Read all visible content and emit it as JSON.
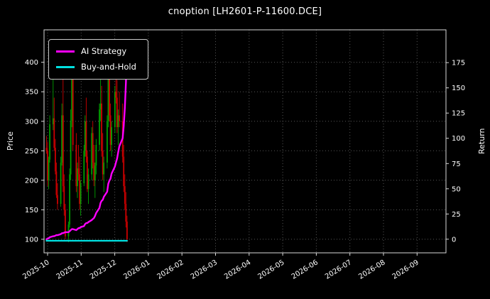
{
  "title": "cnoption [LH2601-P-11600.DCE]",
  "legend": {
    "items": [
      {
        "label": "AI Strategy",
        "color": "#ff00ff"
      },
      {
        "label": "Buy-and-Hold",
        "color": "#00e0e0"
      }
    ]
  },
  "chart_data": {
    "type": "candlestick",
    "title": "cnoption [LH2601-P-11600.DCE]",
    "ylabel_left": "Price",
    "ylabel_right": "Return",
    "grid": "dotted",
    "legend_position": "upper left",
    "x_start": "2025-10-01",
    "x_ticks": [
      "2025-10",
      "2025-11",
      "2025-12",
      "2026-01",
      "2026-02",
      "2026-03",
      "2026-04",
      "2026-05",
      "2026-06",
      "2026-07",
      "2026-08",
      "2026-09"
    ],
    "left_axis": {
      "min": 77,
      "max": 455,
      "ticks": [
        100,
        150,
        200,
        250,
        300,
        350,
        400
      ]
    },
    "right_axis": {
      "min": -13.5,
      "max": 207.5,
      "ticks": [
        0,
        25,
        50,
        75,
        100,
        125,
        150,
        175
      ]
    },
    "colors": {
      "up": "#00a000",
      "down": "#cc0000",
      "grid": "#565656",
      "frame": "#d9d9d9",
      "background": "#000000",
      "text": "#ffffff"
    },
    "candles": {
      "dates": [
        "2025-09-30",
        "2025-10-01",
        "2025-10-02",
        "2025-10-03",
        "2025-10-06",
        "2025-10-07",
        "2025-10-08",
        "2025-10-09",
        "2025-10-10",
        "2025-10-13",
        "2025-10-14",
        "2025-10-15",
        "2025-10-16",
        "2025-10-17",
        "2025-10-20",
        "2025-10-21",
        "2025-10-22",
        "2025-10-23",
        "2025-10-24",
        "2025-10-27",
        "2025-10-28",
        "2025-10-29",
        "2025-10-30",
        "2025-10-31",
        "2025-11-03",
        "2025-11-04",
        "2025-11-05",
        "2025-11-06",
        "2025-11-07",
        "2025-11-10",
        "2025-11-11",
        "2025-11-12",
        "2025-11-13",
        "2025-11-14",
        "2025-11-17",
        "2025-11-18",
        "2025-11-19",
        "2025-11-20",
        "2025-11-21",
        "2025-11-24",
        "2025-11-25",
        "2025-11-26",
        "2025-11-27",
        "2025-11-28",
        "2025-12-01",
        "2025-12-02",
        "2025-12-03",
        "2025-12-04",
        "2025-12-05",
        "2025-12-08",
        "2025-12-09",
        "2025-12-10",
        "2025-12-11",
        "2025-12-12"
      ],
      "open": [
        255,
        250,
        200,
        235,
        295,
        305,
        255,
        215,
        175,
        160,
        230,
        310,
        190,
        150,
        105,
        125,
        210,
        300,
        380,
        260,
        190,
        220,
        210,
        160,
        195,
        250,
        300,
        240,
        185,
        210,
        280,
        230,
        200,
        225,
        260,
        320,
        330,
        250,
        210,
        230,
        300,
        400,
        310,
        260,
        290,
        350,
        340,
        290,
        310,
        300,
        240,
        190,
        160,
        130
      ],
      "high": [
        275,
        265,
        240,
        310,
        390,
        340,
        270,
        230,
        195,
        240,
        330,
        390,
        210,
        160,
        130,
        220,
        320,
        420,
        400,
        280,
        230,
        260,
        240,
        200,
        260,
        310,
        340,
        250,
        220,
        290,
        300,
        260,
        230,
        270,
        330,
        420,
        360,
        280,
        240,
        310,
        420,
        410,
        330,
        300,
        360,
        390,
        370,
        320,
        350,
        330,
        260,
        210,
        180,
        140
      ],
      "low": [
        245,
        190,
        185,
        230,
        285,
        250,
        210,
        170,
        150,
        155,
        225,
        180,
        140,
        100,
        95,
        120,
        200,
        290,
        250,
        180,
        170,
        200,
        150,
        140,
        190,
        240,
        230,
        180,
        160,
        200,
        220,
        190,
        170,
        210,
        250,
        300,
        240,
        200,
        180,
        220,
        290,
        300,
        250,
        240,
        280,
        330,
        280,
        260,
        290,
        230,
        180,
        150,
        120,
        95
      ],
      "close": [
        250,
        200,
        235,
        295,
        305,
        255,
        215,
        175,
        160,
        230,
        310,
        190,
        150,
        105,
        125,
        210,
        300,
        380,
        260,
        190,
        220,
        210,
        160,
        195,
        250,
        300,
        240,
        185,
        210,
        280,
        230,
        200,
        225,
        260,
        320,
        330,
        250,
        210,
        230,
        300,
        400,
        310,
        260,
        290,
        350,
        340,
        290,
        310,
        300,
        240,
        190,
        160,
        130,
        100
      ]
    },
    "series": [
      {
        "name": "AI Strategy",
        "axis": "right",
        "color": "#ff00ff",
        "width": 2.4,
        "values": [
          0,
          0.5,
          1,
          2,
          3,
          3,
          3.5,
          4,
          4,
          5,
          6,
          6,
          6.5,
          7,
          7,
          8,
          9,
          10,
          10,
          9,
          10,
          11,
          11,
          12,
          13,
          15,
          16,
          16,
          17,
          19,
          20,
          21,
          23,
          26,
          31,
          36,
          38,
          39,
          42,
          47,
          55,
          58,
          60,
          65,
          72,
          76,
          80,
          86,
          92,
          100,
          112,
          130,
          155,
          192
        ]
      },
      {
        "name": "Buy-and-Hold",
        "axis": "right",
        "color": "#00e0e0",
        "width": 2.2,
        "values": [
          -1.5,
          -1.5,
          -1.5,
          -1.5,
          -1.5,
          -1.5,
          -1.5,
          -1.5,
          -1.5,
          -1.5,
          -1.5,
          -1.5,
          -1.5,
          -1.5,
          -1.5,
          -1.5,
          -1.5,
          -1.5,
          -1.5,
          -1.5,
          -1.5,
          -1.5,
          -1.5,
          -1.5,
          -1.5,
          -1.5,
          -1.5,
          -1.5,
          -1.5,
          -1.5,
          -1.5,
          -1.5,
          -1.5,
          -1.5,
          -1.5,
          -1.5,
          -1.5,
          -1.5,
          -1.5,
          -1.5,
          -1.5,
          -1.5,
          -1.5,
          -1.5,
          -1.5,
          -1.5,
          -1.5,
          -1.5,
          -1.5,
          -1.5,
          -1.5,
          -1.5,
          -1.5,
          -1.5
        ]
      }
    ]
  }
}
